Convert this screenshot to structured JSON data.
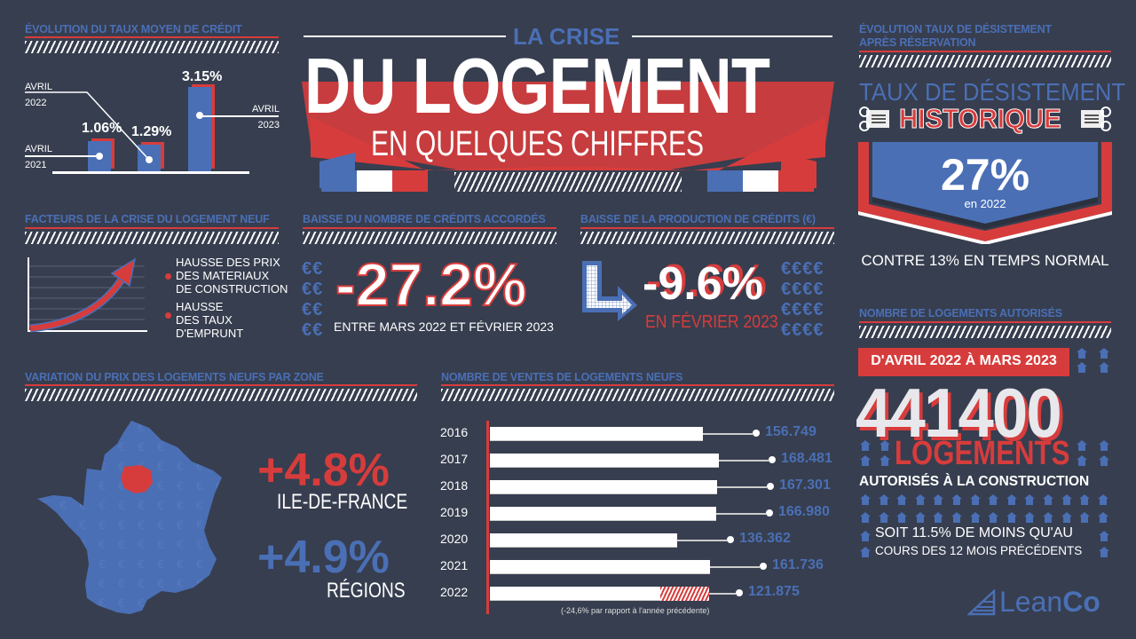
{
  "header": {
    "kicker": "LA CRISE",
    "title": "DU LOGEMENT",
    "subtitle": "EN QUELQUES CHIFFRES"
  },
  "colors": {
    "background": "#373e4f",
    "blue": "#4a6fb5",
    "red": "#d73c3c",
    "white": "#ffffff"
  },
  "credit_rate": {
    "title": "ÉVOLUTION DU TAUX MOYEN DE CRÉDIT",
    "bars": [
      {
        "label_line1": "AVRIL",
        "label_line2": "2021",
        "value": "1.06%"
      },
      {
        "label_line1": "AVRIL",
        "label_line2": "2022",
        "value": "1.29%"
      },
      {
        "label_line1": "AVRIL",
        "label_line2": "2023",
        "value": "3.15%"
      }
    ]
  },
  "factors": {
    "title": "FACTEURS DE LA CRISE DU LOGEMENT NEUF",
    "items": [
      {
        "lines": [
          "HAUSSE DES PRIX",
          "DES MATERIAUX",
          "DE CONSTRUCTION"
        ]
      },
      {
        "lines": [
          "HAUSSE",
          "DES TAUX",
          "D'EMPRUNT"
        ]
      }
    ]
  },
  "credits_count": {
    "title": "BAISSE DU NOMBRE DE CRÉDITS ACCORDÉS",
    "value": "-27.2%",
    "caption": "ENTRE MARS 2022 ET FÉVRIER 2023",
    "icon_glyph": "€€"
  },
  "credits_production": {
    "title": "BAISSE DE LA PRODUCTION DE CRÉDITS (€)",
    "value": "-9.6%",
    "caption": "EN FÉVRIER 2023",
    "icon_glyph": "€€€€"
  },
  "withdrawal": {
    "title_line1": "ÉVOLUTION TAUX DE DÉSISTEMENT",
    "title_line2": "APRÈS RÉSERVATION",
    "headline": "TAUX DE DÉSISTEMENT",
    "ribbon": "HISTORIQUE",
    "value": "27%",
    "year": "en 2022",
    "comparison": "CONTRE 13% EN TEMPS NORMAL"
  },
  "authorized": {
    "title": "NOMBRE DE LOGEMENTS AUTORISÉS",
    "period": "D'AVRIL 2022 À MARS 2023",
    "value": "441400",
    "unit": "LOGEMENTS",
    "unit_caption": "AUTORISÉS À LA CONSTRUCTION",
    "note_line1": "SOIT 11.5% DE MOINS QU'AU",
    "note_line2": "COURS DES 12 MOIS PRÉCÉDENTS"
  },
  "price_variation": {
    "title": "VARIATION DU PRIX DES LOGEMENTS NEUFS PAR ZONE",
    "zones": [
      {
        "value": "+4.8%",
        "label": "ILE-DE-FRANCE",
        "color": "#d73c3c"
      },
      {
        "value": "+4.9%",
        "label": "RÉGIONS",
        "color": "#4a6fb5"
      }
    ]
  },
  "sales": {
    "title": "NOMBRE DE VENTES DE LOGEMENTS NEUFS",
    "footnote": "(-24,6% par rapport à l'année précédente)"
  },
  "brand": {
    "light": "Lean",
    "bold": "Co"
  },
  "chart_data": [
    {
      "type": "bar",
      "title": "ÉVOLUTION DU TAUX MOYEN DE CRÉDIT",
      "categories": [
        "Avril 2021",
        "Avril 2022",
        "Avril 2023"
      ],
      "values": [
        1.06,
        1.29,
        3.15
      ],
      "unit": "%",
      "xlabel": "",
      "ylabel": ""
    },
    {
      "type": "bar",
      "orientation": "horizontal",
      "title": "NOMBRE DE VENTES DE LOGEMENTS NEUFS",
      "categories": [
        "2016",
        "2017",
        "2018",
        "2019",
        "2020",
        "2021",
        "2022"
      ],
      "values": [
        156749,
        168481,
        167301,
        166980,
        136362,
        161736,
        121875
      ],
      "labels": [
        "156.749",
        "168.481",
        "167.301",
        "166.980",
        "136.362",
        "161.736",
        "121.875"
      ],
      "annotation": "(-24,6% par rapport à l'année précédente)",
      "xlabel": "",
      "ylabel": ""
    }
  ],
  "sales_rows": [
    {
      "year": "2016",
      "label": "156.749",
      "bar": 240,
      "lead": 56
    },
    {
      "year": "2017",
      "label": "168.481",
      "bar": 258,
      "lead": 56
    },
    {
      "year": "2018",
      "label": "167.301",
      "bar": 256,
      "lead": 56
    },
    {
      "year": "2019",
      "label": "166.980",
      "bar": 255,
      "lead": 56
    },
    {
      "year": "2020",
      "label": "136.362",
      "bar": 211,
      "lead": 56
    },
    {
      "year": "2021",
      "label": "161.736",
      "bar": 248,
      "lead": 56
    },
    {
      "year": "2022",
      "label": "121.875",
      "bar": 192,
      "lead": 30
    }
  ]
}
